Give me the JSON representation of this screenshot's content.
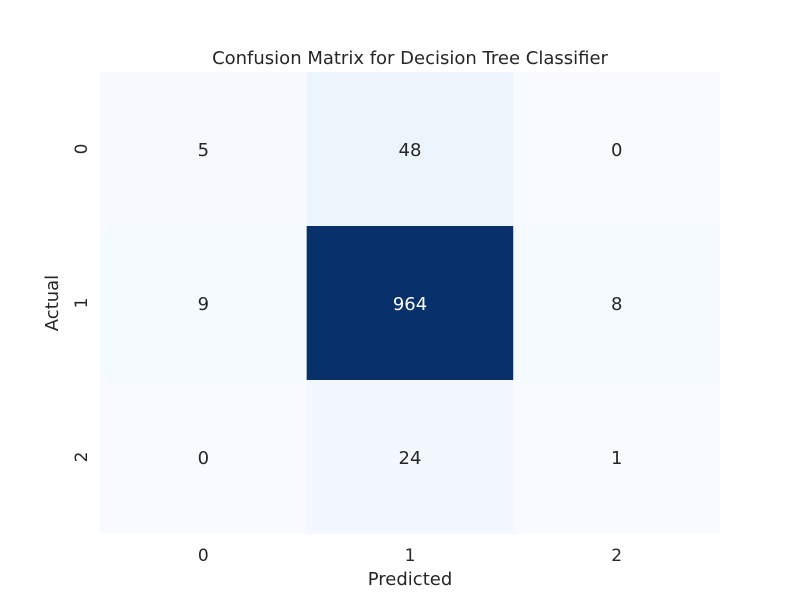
{
  "chart_data": {
    "type": "heatmap",
    "title": "Confusion Matrix for Decision Tree Classifier",
    "xlabel": "Predicted",
    "ylabel": "Actual",
    "x_categories": [
      "0",
      "1",
      "2"
    ],
    "y_categories": [
      "0",
      "1",
      "2"
    ],
    "values": [
      [
        5,
        48,
        0
      ],
      [
        9,
        964,
        8
      ],
      [
        0,
        24,
        1
      ]
    ],
    "colormap": "Blues",
    "color_low": "#f7fbff",
    "color_high": "#08306b",
    "text_dark": "#262626",
    "text_light": "#ffffff",
    "colorbar": false
  }
}
